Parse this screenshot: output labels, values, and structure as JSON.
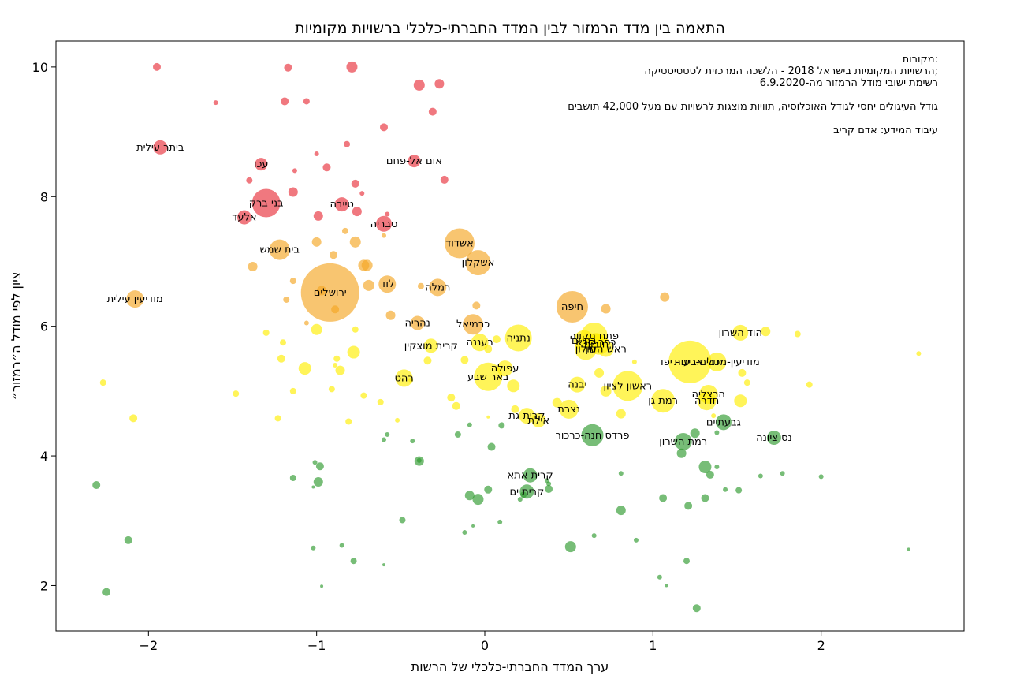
{
  "chart_data": {
    "type": "scatter",
    "title": "התאמה בין מדד הרמזור לבין המדד החברתי-כלכלי ברשויות מקומיות",
    "xlabel": "ערך המדד החברתי-כלכלי של הרשות",
    "ylabel": "ציון לפי מודל ה״רמזור״",
    "xlim": [
      -2.55,
      2.85
    ],
    "ylim": [
      1.3,
      10.4
    ],
    "xticks": [
      -2,
      -1,
      0,
      1,
      2
    ],
    "xtick_labels": [
      "−2",
      "−1",
      "0",
      "1",
      "2"
    ],
    "yticks": [
      2,
      4,
      6,
      8,
      10
    ],
    "ytick_labels": [
      "2",
      "4",
      "6",
      "8",
      "10"
    ],
    "grid": false,
    "annotation_lines": [
      "מקורות:",
      "הרשויות המקומיות בישראל 2018 - הלשכה המרכזית לסטטיסטיקה;",
      "רשימת ישובי מודל הרמזור מה-6.9.2020",
      "",
      "גודל העיגולים יחסי לגודל האוכלוסיה, תוויות מוצגות לרשויות עם מעל 42,000 תושבים",
      "",
      "עיבוד המידע: אדם קריב"
    ],
    "colors": {
      "red": "#e8303a",
      "orange": "#f5a623",
      "yellow": "#ffee00",
      "green": "#2e9a2e"
    },
    "points": [
      {
        "x": -0.92,
        "y": 6.52,
        "r": 37,
        "c": "orange",
        "label": "ירושלים"
      },
      {
        "x": 1.22,
        "y": 5.45,
        "r": 27,
        "c": "yellow",
        "label": "תל אביב - יפו"
      },
      {
        "x": 0.52,
        "y": 6.3,
        "r": 20,
        "c": "orange",
        "label": "חיפה"
      },
      {
        "x": 0.85,
        "y": 5.08,
        "r": 19,
        "c": "yellow",
        "label": "ראשון לציון"
      },
      {
        "x": 0.65,
        "y": 5.85,
        "r": 17,
        "c": "yellow",
        "label": "פתח תקווה"
      },
      {
        "x": -0.15,
        "y": 7.28,
        "r": 19,
        "c": "orange",
        "label": "אשדוד"
      },
      {
        "x": 0.2,
        "y": 5.82,
        "r": 17,
        "c": "yellow",
        "label": "נתניה"
      },
      {
        "x": 0.02,
        "y": 5.22,
        "r": 18,
        "c": "yellow",
        "label": "באר שבע"
      },
      {
        "x": -1.3,
        "y": 7.9,
        "r": 18,
        "c": "red",
        "label": "בני ברק"
      },
      {
        "x": 0.6,
        "y": 5.65,
        "r": 14,
        "c": "yellow",
        "label": "חולון"
      },
      {
        "x": 1.06,
        "y": 4.85,
        "r": 15,
        "c": "yellow",
        "label": "רמת גן"
      },
      {
        "x": -0.04,
        "y": 6.98,
        "r": 16,
        "c": "orange",
        "label": "אשקלון"
      },
      {
        "x": 0.68,
        "y": 5.72,
        "r": 13,
        "c": "yellow",
        "label": "רחובות"
      },
      {
        "x": 0.59,
        "y": 5.78,
        "r": 13,
        "c": "yellow",
        "label": "בת ים"
      },
      {
        "x": -1.22,
        "y": 7.18,
        "r": 13,
        "c": "orange",
        "label": "בית שמש"
      },
      {
        "x": 0.66,
        "y": 5.75,
        "r": 12,
        "c": "yellow",
        "label": "כפר סבא"
      },
      {
        "x": 1.33,
        "y": 4.95,
        "r": 12,
        "c": "yellow",
        "label": "הרצליה"
      },
      {
        "x": 1.32,
        "y": 4.85,
        "r": 12,
        "c": "yellow",
        "label": "חדרה"
      },
      {
        "x": 1.38,
        "y": 5.45,
        "r": 12,
        "c": "yellow",
        "label": "מודיעין-מכבים-רעות"
      },
      {
        "x": 0.5,
        "y": 4.72,
        "r": 12,
        "c": "yellow",
        "label": "נצרת"
      },
      {
        "x": -0.58,
        "y": 6.65,
        "r": 11,
        "c": "orange",
        "label": "לוד"
      },
      {
        "x": -0.28,
        "y": 6.6,
        "r": 11,
        "c": "orange",
        "label": "רמלה"
      },
      {
        "x": -0.03,
        "y": 5.75,
        "r": 11,
        "c": "yellow",
        "label": "רעננה"
      },
      {
        "x": -2.08,
        "y": 6.42,
        "r": 11,
        "c": "orange",
        "label": "מודיעין עילית"
      },
      {
        "x": -0.48,
        "y": 5.2,
        "r": 11,
        "c": "yellow",
        "label": "רהט"
      },
      {
        "x": 1.52,
        "y": 5.9,
        "r": 10,
        "c": "yellow",
        "label": "הוד השרון"
      },
      {
        "x": 0.72,
        "y": 5.65,
        "r": 10,
        "c": "yellow",
        "label": "ראש העין"
      },
      {
        "x": 0.55,
        "y": 5.1,
        "r": 10,
        "c": "yellow",
        "label": "יבנה"
      },
      {
        "x": 0.25,
        "y": 4.62,
        "r": 10,
        "c": "yellow",
        "label": "קרית גת"
      },
      {
        "x": 1.42,
        "y": 4.52,
        "r": 10,
        "c": "green",
        "label": "גבעתיים"
      },
      {
        "x": 1.18,
        "y": 4.22,
        "r": 11,
        "c": "green",
        "label": "רמת השרון"
      },
      {
        "x": 0.64,
        "y": 4.32,
        "r": 14,
        "c": "green",
        "label": "פרדס חנה-כרכור"
      },
      {
        "x": 0.12,
        "y": 5.35,
        "r": 10,
        "c": "yellow",
        "label": "עפולה"
      },
      {
        "x": 1.72,
        "y": 4.28,
        "r": 9,
        "c": "green",
        "label": "נס ציונה"
      },
      {
        "x": -0.6,
        "y": 7.58,
        "r": 10,
        "c": "red",
        "label": "טבריה"
      },
      {
        "x": -0.42,
        "y": 8.55,
        "r": 8,
        "c": "red",
        "label": "אום אל-פחם"
      },
      {
        "x": -0.85,
        "y": 7.88,
        "r": 9,
        "c": "red",
        "label": "טייבה"
      },
      {
        "x": -1.93,
        "y": 8.76,
        "r": 9,
        "c": "red",
        "label": "ביתר עילית"
      },
      {
        "x": -1.43,
        "y": 7.68,
        "r": 9,
        "c": "red",
        "label": "אלעד"
      },
      {
        "x": -1.33,
        "y": 8.5,
        "r": 8,
        "c": "red",
        "label": "עכו"
      },
      {
        "x": -0.4,
        "y": 6.05,
        "r": 9,
        "c": "orange",
        "label": "נהריה"
      },
      {
        "x": -0.07,
        "y": 6.03,
        "r": 13,
        "c": "orange",
        "label": "כרמיאל"
      },
      {
        "x": -0.32,
        "y": 5.7,
        "r": 9,
        "c": "yellow",
        "label": "קרית מוצקין"
      },
      {
        "x": 0.32,
        "y": 4.55,
        "r": 9,
        "c": "yellow",
        "label": "אילת"
      },
      {
        "x": 0.27,
        "y": 3.7,
        "r": 9,
        "c": "green",
        "label": "קרית אתא"
      },
      {
        "x": 0.25,
        "y": 3.45,
        "r": 9,
        "c": "green",
        "label": "קרית ים"
      },
      {
        "x": -1.95,
        "y": 10.0,
        "r": 5,
        "c": "red"
      },
      {
        "x": -1.17,
        "y": 9.99,
        "r": 5,
        "c": "red"
      },
      {
        "x": -0.79,
        "y": 10.0,
        "r": 7,
        "c": "red"
      },
      {
        "x": -0.39,
        "y": 9.72,
        "r": 7,
        "c": "red"
      },
      {
        "x": -0.27,
        "y": 9.74,
        "r": 6,
        "c": "red"
      },
      {
        "x": -1.6,
        "y": 9.45,
        "r": 3,
        "c": "red"
      },
      {
        "x": -1.19,
        "y": 9.47,
        "r": 5,
        "c": "red"
      },
      {
        "x": -1.06,
        "y": 9.47,
        "r": 4,
        "c": "red"
      },
      {
        "x": -0.31,
        "y": 9.31,
        "r": 5,
        "c": "red"
      },
      {
        "x": -0.6,
        "y": 9.07,
        "r": 5,
        "c": "red"
      },
      {
        "x": -0.82,
        "y": 8.81,
        "r": 4,
        "c": "red"
      },
      {
        "x": -1.0,
        "y": 8.66,
        "r": 3,
        "c": "red"
      },
      {
        "x": -0.94,
        "y": 8.45,
        "r": 5,
        "c": "red"
      },
      {
        "x": -1.13,
        "y": 8.4,
        "r": 3,
        "c": "red"
      },
      {
        "x": -1.4,
        "y": 8.25,
        "r": 4,
        "c": "red"
      },
      {
        "x": -0.77,
        "y": 8.2,
        "r": 5,
        "c": "red"
      },
      {
        "x": -0.24,
        "y": 8.26,
        "r": 5,
        "c": "red"
      },
      {
        "x": -1.14,
        "y": 8.07,
        "r": 6,
        "c": "red"
      },
      {
        "x": -0.73,
        "y": 8.05,
        "r": 3,
        "c": "red"
      },
      {
        "x": -0.76,
        "y": 7.77,
        "r": 6,
        "c": "red"
      },
      {
        "x": -0.99,
        "y": 7.7,
        "r": 6,
        "c": "red"
      },
      {
        "x": -0.58,
        "y": 7.73,
        "r": 3,
        "c": "red"
      },
      {
        "x": -0.83,
        "y": 7.47,
        "r": 4,
        "c": "orange"
      },
      {
        "x": -0.6,
        "y": 7.4,
        "r": 3,
        "c": "orange"
      },
      {
        "x": -1.0,
        "y": 7.3,
        "r": 6,
        "c": "orange"
      },
      {
        "x": -0.77,
        "y": 7.3,
        "r": 7,
        "c": "orange"
      },
      {
        "x": -0.9,
        "y": 7.1,
        "r": 5,
        "c": "orange"
      },
      {
        "x": -0.72,
        "y": 6.94,
        "r": 7,
        "c": "orange"
      },
      {
        "x": -0.7,
        "y": 6.94,
        "r": 7,
        "c": "orange"
      },
      {
        "x": -1.38,
        "y": 6.92,
        "r": 6,
        "c": "orange"
      },
      {
        "x": -1.14,
        "y": 6.7,
        "r": 4,
        "c": "orange"
      },
      {
        "x": -0.97,
        "y": 6.55,
        "r": 6,
        "c": "orange"
      },
      {
        "x": -0.38,
        "y": 6.62,
        "r": 4,
        "c": "orange"
      },
      {
        "x": -0.69,
        "y": 6.63,
        "r": 7,
        "c": "orange"
      },
      {
        "x": -1.18,
        "y": 6.41,
        "r": 4,
        "c": "orange"
      },
      {
        "x": -0.89,
        "y": 6.26,
        "r": 5,
        "c": "orange"
      },
      {
        "x": -0.56,
        "y": 6.17,
        "r": 6,
        "c": "orange"
      },
      {
        "x": -0.05,
        "y": 6.32,
        "r": 5,
        "c": "orange"
      },
      {
        "x": 0.72,
        "y": 6.27,
        "r": 6,
        "c": "orange"
      },
      {
        "x": 1.07,
        "y": 6.45,
        "r": 6,
        "c": "orange"
      },
      {
        "x": -1.06,
        "y": 6.05,
        "r": 3,
        "c": "orange"
      },
      {
        "x": -1.0,
        "y": 5.95,
        "r": 7,
        "c": "yellow"
      },
      {
        "x": -0.77,
        "y": 5.95,
        "r": 4,
        "c": "yellow"
      },
      {
        "x": -1.2,
        "y": 5.75,
        "r": 4,
        "c": "yellow"
      },
      {
        "x": -1.3,
        "y": 5.9,
        "r": 4,
        "c": "yellow"
      },
      {
        "x": -1.21,
        "y": 5.5,
        "r": 5,
        "c": "yellow"
      },
      {
        "x": -0.88,
        "y": 5.5,
        "r": 4,
        "c": "yellow"
      },
      {
        "x": -0.78,
        "y": 5.6,
        "r": 8,
        "c": "yellow"
      },
      {
        "x": -1.07,
        "y": 5.35,
        "r": 8,
        "c": "yellow"
      },
      {
        "x": -0.86,
        "y": 5.32,
        "r": 6,
        "c": "yellow"
      },
      {
        "x": -0.89,
        "y": 5.4,
        "r": 3,
        "c": "yellow"
      },
      {
        "x": -0.34,
        "y": 5.47,
        "r": 5,
        "c": "yellow"
      },
      {
        "x": -0.12,
        "y": 5.48,
        "r": 5,
        "c": "yellow"
      },
      {
        "x": 0.02,
        "y": 5.65,
        "r": 5,
        "c": "yellow"
      },
      {
        "x": 0.07,
        "y": 5.8,
        "r": 5,
        "c": "yellow"
      },
      {
        "x": -2.27,
        "y": 5.13,
        "r": 4,
        "c": "yellow"
      },
      {
        "x": -1.14,
        "y": 5.0,
        "r": 4,
        "c": "yellow"
      },
      {
        "x": -1.48,
        "y": 4.96,
        "r": 4,
        "c": "yellow"
      },
      {
        "x": -0.91,
        "y": 5.03,
        "r": 4,
        "c": "yellow"
      },
      {
        "x": -0.72,
        "y": 4.93,
        "r": 4,
        "c": "yellow"
      },
      {
        "x": -0.62,
        "y": 4.83,
        "r": 4,
        "c": "yellow"
      },
      {
        "x": -0.44,
        "y": 5.17,
        "r": 3,
        "c": "yellow"
      },
      {
        "x": -0.2,
        "y": 4.9,
        "r": 5,
        "c": "yellow"
      },
      {
        "x": -0.17,
        "y": 4.77,
        "r": 5,
        "c": "yellow"
      },
      {
        "x": 0.18,
        "y": 4.72,
        "r": 5,
        "c": "yellow"
      },
      {
        "x": 0.17,
        "y": 5.08,
        "r": 8,
        "c": "yellow"
      },
      {
        "x": 0.68,
        "y": 5.28,
        "r": 6,
        "c": "yellow"
      },
      {
        "x": 0.72,
        "y": 5.0,
        "r": 7,
        "c": "yellow"
      },
      {
        "x": 0.81,
        "y": 4.65,
        "r": 6,
        "c": "yellow"
      },
      {
        "x": 0.89,
        "y": 5.45,
        "r": 3,
        "c": "yellow"
      },
      {
        "x": 1.53,
        "y": 5.28,
        "r": 5,
        "c": "yellow"
      },
      {
        "x": 1.56,
        "y": 5.13,
        "r": 4,
        "c": "yellow"
      },
      {
        "x": 1.52,
        "y": 4.85,
        "r": 8,
        "c": "yellow"
      },
      {
        "x": 1.67,
        "y": 5.92,
        "r": 6,
        "c": "yellow"
      },
      {
        "x": 1.86,
        "y": 5.88,
        "r": 4,
        "c": "yellow"
      },
      {
        "x": 1.93,
        "y": 5.1,
        "r": 4,
        "c": "yellow"
      },
      {
        "x": 2.58,
        "y": 5.58,
        "r": 3,
        "c": "yellow"
      },
      {
        "x": -2.09,
        "y": 4.58,
        "r": 5,
        "c": "yellow"
      },
      {
        "x": -1.23,
        "y": 4.58,
        "r": 4,
        "c": "yellow"
      },
      {
        "x": -0.81,
        "y": 4.53,
        "r": 4,
        "c": "yellow"
      },
      {
        "x": -0.52,
        "y": 4.55,
        "r": 3,
        "c": "yellow"
      },
      {
        "x": 0.02,
        "y": 4.6,
        "r": 2,
        "c": "yellow"
      },
      {
        "x": 0.43,
        "y": 4.82,
        "r": 6,
        "c": "yellow"
      },
      {
        "x": 1.36,
        "y": 4.62,
        "r": 3,
        "c": "yellow"
      },
      {
        "x": -0.58,
        "y": 4.33,
        "r": 3,
        "c": "green"
      },
      {
        "x": -0.6,
        "y": 4.25,
        "r": 3,
        "c": "green"
      },
      {
        "x": -0.43,
        "y": 4.23,
        "r": 3,
        "c": "green"
      },
      {
        "x": -0.16,
        "y": 4.33,
        "r": 4,
        "c": "green"
      },
      {
        "x": -0.09,
        "y": 4.48,
        "r": 3,
        "c": "green"
      },
      {
        "x": 0.1,
        "y": 4.47,
        "r": 4,
        "c": "green"
      },
      {
        "x": 0.04,
        "y": 4.14,
        "r": 5,
        "c": "green"
      },
      {
        "x": -0.39,
        "y": 3.92,
        "r": 6,
        "c": "green"
      },
      {
        "x": -0.39,
        "y": 3.93,
        "r": 3,
        "c": "green"
      },
      {
        "x": -1.01,
        "y": 3.9,
        "r": 3,
        "c": "green"
      },
      {
        "x": -0.98,
        "y": 3.84,
        "r": 5,
        "c": "green"
      },
      {
        "x": -1.14,
        "y": 3.66,
        "r": 4,
        "c": "green"
      },
      {
        "x": -0.99,
        "y": 3.6,
        "r": 6,
        "c": "green"
      },
      {
        "x": -1.02,
        "y": 3.52,
        "r": 2,
        "c": "green"
      },
      {
        "x": -2.31,
        "y": 3.55,
        "r": 5,
        "c": "green"
      },
      {
        "x": -0.09,
        "y": 3.39,
        "r": 6,
        "c": "green"
      },
      {
        "x": -0.04,
        "y": 3.33,
        "r": 7,
        "c": "green"
      },
      {
        "x": 0.02,
        "y": 3.48,
        "r": 5,
        "c": "green"
      },
      {
        "x": 0.23,
        "y": 3.4,
        "r": 4,
        "c": "green"
      },
      {
        "x": 0.21,
        "y": 3.33,
        "r": 3,
        "c": "green"
      },
      {
        "x": 0.38,
        "y": 3.57,
        "r": 3,
        "c": "green"
      },
      {
        "x": 0.37,
        "y": 3.62,
        "r": 3,
        "c": "green"
      },
      {
        "x": 0.38,
        "y": 3.49,
        "r": 5,
        "c": "green"
      },
      {
        "x": 0.81,
        "y": 3.73,
        "r": 3,
        "c": "green"
      },
      {
        "x": 0.81,
        "y": 3.16,
        "r": 6,
        "c": "green"
      },
      {
        "x": 1.06,
        "y": 3.35,
        "r": 5,
        "c": "green"
      },
      {
        "x": 1.21,
        "y": 3.23,
        "r": 5,
        "c": "green"
      },
      {
        "x": 1.31,
        "y": 3.35,
        "r": 5,
        "c": "green"
      },
      {
        "x": 1.31,
        "y": 3.83,
        "r": 8,
        "c": "green"
      },
      {
        "x": 1.34,
        "y": 3.71,
        "r": 5,
        "c": "green"
      },
      {
        "x": 1.38,
        "y": 3.83,
        "r": 3,
        "c": "green"
      },
      {
        "x": 1.43,
        "y": 3.48,
        "r": 3,
        "c": "green"
      },
      {
        "x": 1.51,
        "y": 3.47,
        "r": 4,
        "c": "green"
      },
      {
        "x": 1.64,
        "y": 3.69,
        "r": 3,
        "c": "green"
      },
      {
        "x": 1.77,
        "y": 3.73,
        "r": 3,
        "c": "green"
      },
      {
        "x": 2.0,
        "y": 3.68,
        "r": 3,
        "c": "green"
      },
      {
        "x": 1.25,
        "y": 4.35,
        "r": 6,
        "c": "green"
      },
      {
        "x": 1.17,
        "y": 4.04,
        "r": 6,
        "c": "green"
      },
      {
        "x": 1.38,
        "y": 4.36,
        "r": 3,
        "c": "green"
      },
      {
        "x": -0.49,
        "y": 3.01,
        "r": 4,
        "c": "green"
      },
      {
        "x": -0.12,
        "y": 2.82,
        "r": 3,
        "c": "green"
      },
      {
        "x": -0.07,
        "y": 2.92,
        "r": 2,
        "c": "green"
      },
      {
        "x": 0.09,
        "y": 2.98,
        "r": 3,
        "c": "green"
      },
      {
        "x": 0.51,
        "y": 2.6,
        "r": 7,
        "c": "green"
      },
      {
        "x": 0.65,
        "y": 2.77,
        "r": 3,
        "c": "green"
      },
      {
        "x": 0.9,
        "y": 2.7,
        "r": 3,
        "c": "green"
      },
      {
        "x": -2.12,
        "y": 2.7,
        "r": 5,
        "c": "green"
      },
      {
        "x": -1.02,
        "y": 2.58,
        "r": 3,
        "c": "green"
      },
      {
        "x": -0.85,
        "y": 2.62,
        "r": 3,
        "c": "green"
      },
      {
        "x": -0.78,
        "y": 2.38,
        "r": 4,
        "c": "green"
      },
      {
        "x": -0.6,
        "y": 2.32,
        "r": 2,
        "c": "green"
      },
      {
        "x": 2.52,
        "y": 2.56,
        "r": 2,
        "c": "green"
      },
      {
        "x": -2.25,
        "y": 1.9,
        "r": 5,
        "c": "green"
      },
      {
        "x": -0.97,
        "y": 1.99,
        "r": 2,
        "c": "green"
      },
      {
        "x": 1.04,
        "y": 2.13,
        "r": 3,
        "c": "green"
      },
      {
        "x": 1.08,
        "y": 2.0,
        "r": 2,
        "c": "green"
      },
      {
        "x": 1.2,
        "y": 2.38,
        "r": 4,
        "c": "green"
      },
      {
        "x": 1.26,
        "y": 1.65,
        "r": 5,
        "c": "green"
      }
    ]
  }
}
